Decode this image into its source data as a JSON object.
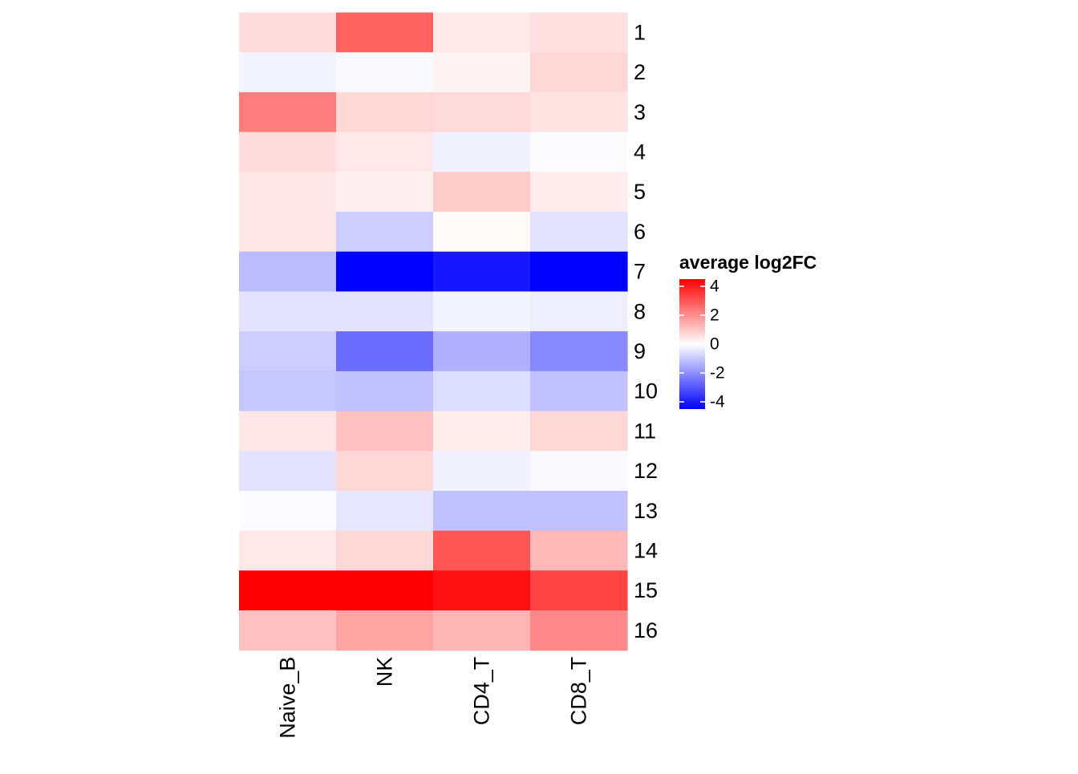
{
  "chart_data": {
    "type": "heatmap",
    "title": "",
    "xlabel": "",
    "ylabel": "",
    "columns": [
      "Naive_B",
      "NK",
      "CD4_T",
      "CD8_T"
    ],
    "rows": [
      "1",
      "2",
      "3",
      "4",
      "5",
      "6",
      "7",
      "8",
      "9",
      "10",
      "11",
      "12",
      "13",
      "14",
      "15",
      "16"
    ],
    "values": [
      [
        0.6,
        2.8,
        0.4,
        0.55
      ],
      [
        -0.2,
        -0.1,
        0.2,
        0.7
      ],
      [
        2.3,
        0.7,
        0.65,
        0.5
      ],
      [
        0.6,
        0.4,
        -0.25,
        -0.05
      ],
      [
        0.45,
        0.25,
        0.9,
        0.35
      ],
      [
        0.45,
        -0.9,
        0.1,
        -0.5
      ],
      [
        -1.2,
        -4.5,
        -4.1,
        -4.5
      ],
      [
        -0.5,
        -0.5,
        -0.2,
        -0.3
      ],
      [
        -0.9,
        -2.6,
        -1.4,
        -2.1
      ],
      [
        -1.0,
        -1.1,
        -0.6,
        -1.1
      ],
      [
        0.45,
        1.1,
        0.3,
        0.7
      ],
      [
        -0.5,
        0.7,
        -0.25,
        -0.1
      ],
      [
        -0.05,
        -0.45,
        -1.1,
        -1.1
      ],
      [
        0.4,
        0.7,
        3.0,
        1.25
      ],
      [
        4.5,
        4.5,
        4.2,
        3.3
      ],
      [
        1.1,
        1.6,
        1.3,
        2.1
      ]
    ],
    "color_scale": {
      "low": "#0000ff",
      "mid": "#ffffff",
      "high": "#ff0000",
      "min": -4.5,
      "max": 4.5
    },
    "legend": {
      "title": "average log2FC",
      "ticks": [
        4,
        2,
        0,
        -2,
        -4
      ],
      "tick_labels": [
        "4",
        "2",
        "0",
        "-2",
        "-4"
      ],
      "placement": "right"
    }
  }
}
